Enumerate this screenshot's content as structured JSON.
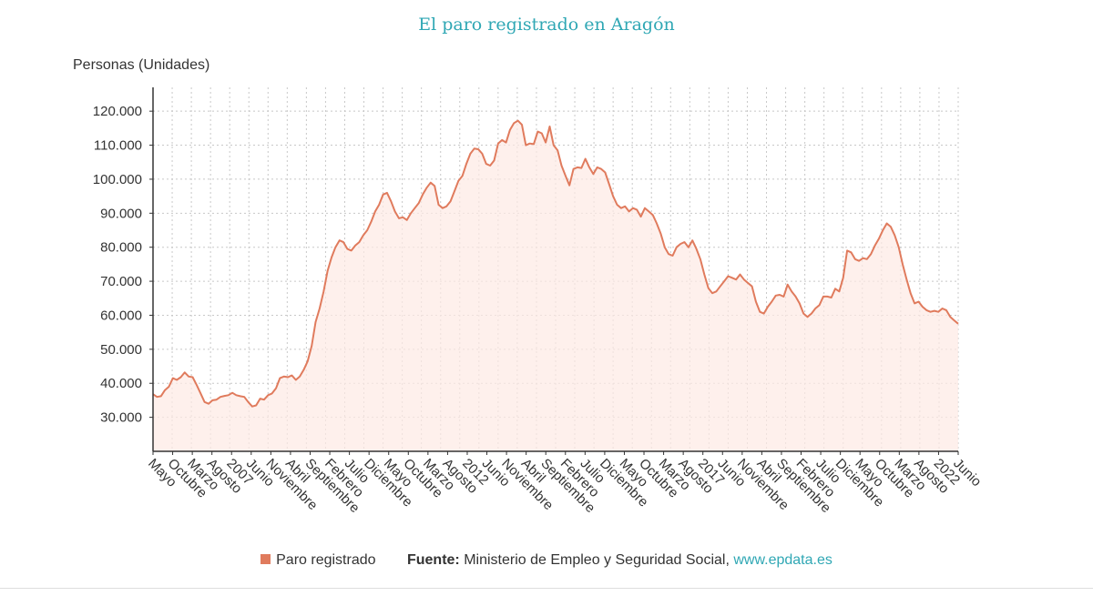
{
  "chart_data": {
    "type": "area",
    "title": "El paro registrado en Aragón",
    "ylabel": "Personas (Unidades)",
    "ylim": [
      20000,
      127000
    ],
    "yticks": [
      30000,
      40000,
      50000,
      60000,
      70000,
      80000,
      90000,
      100000,
      110000,
      120000
    ],
    "ytick_labels": [
      "30.000",
      "40.000",
      "50.000",
      "60.000",
      "70.000",
      "80.000",
      "90.000",
      "100.000",
      "110.000",
      "120.000"
    ],
    "xlabels": [
      "Mayo",
      "Octubre",
      "Marzo",
      "Agosto",
      "2007",
      "Junio",
      "Noviembre",
      "Abril",
      "Septiembre",
      "Febrero",
      "Julio",
      "Diciembre",
      "Mayo",
      "Octubre",
      "Marzo",
      "Agosto",
      "2012",
      "Junio",
      "Noviembre",
      "Abril",
      "Septiembre",
      "Febrero",
      "Julio",
      "Diciembre",
      "Mayo",
      "Octubre",
      "Marzo",
      "Agosto",
      "2017",
      "Junio",
      "Noviembre",
      "Abril",
      "Septiembre",
      "Febrero",
      "Julio",
      "Diciembre",
      "Mayo",
      "Octubre",
      "Marzo",
      "Agosto",
      "2022",
      "Junio"
    ],
    "grid": true,
    "series": [
      {
        "name": "Paro registrado",
        "color": "#e07b5d",
        "start": "Mayo 2005",
        "end": "Junio 2022",
        "points": [
          [
            0,
            36800
          ],
          [
            1,
            36000
          ],
          [
            2,
            36200
          ],
          [
            3,
            38000
          ],
          [
            4,
            39000
          ],
          [
            5,
            41500
          ],
          [
            6,
            41000
          ],
          [
            7,
            41800
          ],
          [
            8,
            43200
          ],
          [
            9,
            42000
          ],
          [
            10,
            41800
          ],
          [
            11,
            39500
          ],
          [
            12,
            37000
          ],
          [
            13,
            34500
          ],
          [
            14,
            34000
          ],
          [
            15,
            35000
          ],
          [
            16,
            35200
          ],
          [
            17,
            36000
          ],
          [
            18,
            36300
          ],
          [
            19,
            36500
          ],
          [
            20,
            37200
          ],
          [
            21,
            36500
          ],
          [
            22,
            36200
          ],
          [
            23,
            36000
          ],
          [
            24,
            34500
          ],
          [
            25,
            33200
          ],
          [
            26,
            33500
          ],
          [
            27,
            35500
          ],
          [
            28,
            35200
          ],
          [
            29,
            36500
          ],
          [
            30,
            37000
          ],
          [
            31,
            38500
          ],
          [
            32,
            41500
          ],
          [
            33,
            42000
          ],
          [
            34,
            41800
          ],
          [
            35,
            42300
          ],
          [
            36,
            41000
          ],
          [
            37,
            42000
          ],
          [
            38,
            44000
          ],
          [
            39,
            46500
          ],
          [
            40,
            51000
          ],
          [
            41,
            58000
          ],
          [
            42,
            62000
          ],
          [
            43,
            67000
          ],
          [
            44,
            73000
          ],
          [
            45,
            77000
          ],
          [
            46,
            80000
          ],
          [
            47,
            82000
          ],
          [
            48,
            81500
          ],
          [
            49,
            79500
          ],
          [
            50,
            79000
          ],
          [
            51,
            80500
          ],
          [
            52,
            81500
          ],
          [
            53,
            83500
          ],
          [
            54,
            85000
          ],
          [
            55,
            87500
          ],
          [
            56,
            90500
          ],
          [
            57,
            92500
          ],
          [
            58,
            95500
          ],
          [
            59,
            96000
          ],
          [
            60,
            93500
          ],
          [
            61,
            90500
          ],
          [
            62,
            88500
          ],
          [
            63,
            88800
          ],
          [
            64,
            88000
          ],
          [
            65,
            90000
          ],
          [
            66,
            91500
          ],
          [
            67,
            93000
          ],
          [
            68,
            95500
          ],
          [
            69,
            97500
          ],
          [
            70,
            99000
          ],
          [
            71,
            98000
          ],
          [
            72,
            92500
          ],
          [
            73,
            91500
          ],
          [
            74,
            92000
          ],
          [
            75,
            93500
          ],
          [
            76,
            96500
          ],
          [
            77,
            99500
          ],
          [
            78,
            101000
          ],
          [
            79,
            104500
          ],
          [
            80,
            107500
          ],
          [
            81,
            109000
          ],
          [
            82,
            108800
          ],
          [
            83,
            107500
          ],
          [
            84,
            104500
          ],
          [
            85,
            104000
          ],
          [
            86,
            105500
          ],
          [
            87,
            110500
          ],
          [
            88,
            111500
          ],
          [
            89,
            110800
          ],
          [
            90,
            114500
          ],
          [
            91,
            116500
          ],
          [
            92,
            117200
          ],
          [
            93,
            116000
          ],
          [
            94,
            110000
          ],
          [
            95,
            110500
          ],
          [
            96,
            110300
          ],
          [
            97,
            114000
          ],
          [
            98,
            113500
          ],
          [
            99,
            110800
          ],
          [
            100,
            115500
          ],
          [
            101,
            110000
          ],
          [
            102,
            108500
          ],
          [
            103,
            104000
          ],
          [
            104,
            101000
          ],
          [
            105,
            98200
          ],
          [
            106,
            103000
          ],
          [
            107,
            103500
          ],
          [
            108,
            103300
          ],
          [
            109,
            106000
          ],
          [
            110,
            103500
          ],
          [
            111,
            101500
          ],
          [
            112,
            103500
          ],
          [
            113,
            103000
          ],
          [
            114,
            102000
          ],
          [
            115,
            98500
          ],
          [
            116,
            95000
          ],
          [
            117,
            92500
          ],
          [
            118,
            91500
          ],
          [
            119,
            92000
          ],
          [
            120,
            90500
          ],
          [
            121,
            91500
          ],
          [
            122,
            91000
          ],
          [
            123,
            89000
          ],
          [
            124,
            91500
          ],
          [
            125,
            90500
          ],
          [
            126,
            89500
          ],
          [
            127,
            87000
          ],
          [
            128,
            84000
          ],
          [
            129,
            80000
          ],
          [
            130,
            78000
          ],
          [
            131,
            77500
          ],
          [
            132,
            80000
          ],
          [
            133,
            81000
          ],
          [
            134,
            81500
          ],
          [
            135,
            80000
          ],
          [
            136,
            82000
          ],
          [
            137,
            79500
          ],
          [
            138,
            76500
          ],
          [
            139,
            72000
          ],
          [
            140,
            68000
          ],
          [
            141,
            66500
          ],
          [
            142,
            67000
          ],
          [
            143,
            68500
          ],
          [
            144,
            70000
          ],
          [
            145,
            71500
          ],
          [
            146,
            71000
          ],
          [
            147,
            70500
          ],
          [
            148,
            72000
          ],
          [
            149,
            70500
          ],
          [
            150,
            69500
          ],
          [
            151,
            68500
          ],
          [
            152,
            64000
          ],
          [
            153,
            61000
          ],
          [
            154,
            60500
          ],
          [
            155,
            62500
          ],
          [
            156,
            64000
          ],
          [
            157,
            65800
          ],
          [
            158,
            66000
          ],
          [
            159,
            65500
          ],
          [
            160,
            69000
          ],
          [
            161,
            67000
          ],
          [
            162,
            65500
          ],
          [
            163,
            63500
          ],
          [
            164,
            60500
          ],
          [
            165,
            59500
          ],
          [
            166,
            60500
          ],
          [
            167,
            62000
          ],
          [
            168,
            63000
          ],
          [
            169,
            65500
          ],
          [
            170,
            65500
          ],
          [
            171,
            65200
          ],
          [
            172,
            67800
          ],
          [
            173,
            67000
          ],
          [
            174,
            71000
          ],
          [
            175,
            79000
          ],
          [
            176,
            78500
          ],
          [
            177,
            76500
          ],
          [
            178,
            76000
          ],
          [
            179,
            76800
          ],
          [
            180,
            76500
          ],
          [
            181,
            78000
          ],
          [
            182,
            80500
          ],
          [
            183,
            82500
          ],
          [
            184,
            85000
          ],
          [
            185,
            87000
          ],
          [
            186,
            86000
          ],
          [
            187,
            83500
          ],
          [
            188,
            80000
          ],
          [
            189,
            75000
          ],
          [
            190,
            70500
          ],
          [
            191,
            66500
          ],
          [
            192,
            63500
          ],
          [
            193,
            64000
          ],
          [
            194,
            62500
          ],
          [
            195,
            61500
          ],
          [
            196,
            61000
          ],
          [
            197,
            61300
          ],
          [
            198,
            61000
          ],
          [
            199,
            62000
          ],
          [
            200,
            61500
          ],
          [
            201,
            59500
          ],
          [
            202,
            58500
          ],
          [
            203,
            57500
          ]
        ]
      }
    ]
  },
  "legend": {
    "label": "Paro registrado",
    "color": "#e07b5d"
  },
  "source": {
    "label": "Fuente:",
    "text": "Ministerio de Empleo y Seguridad Social,",
    "link": "www.epdata.es"
  }
}
